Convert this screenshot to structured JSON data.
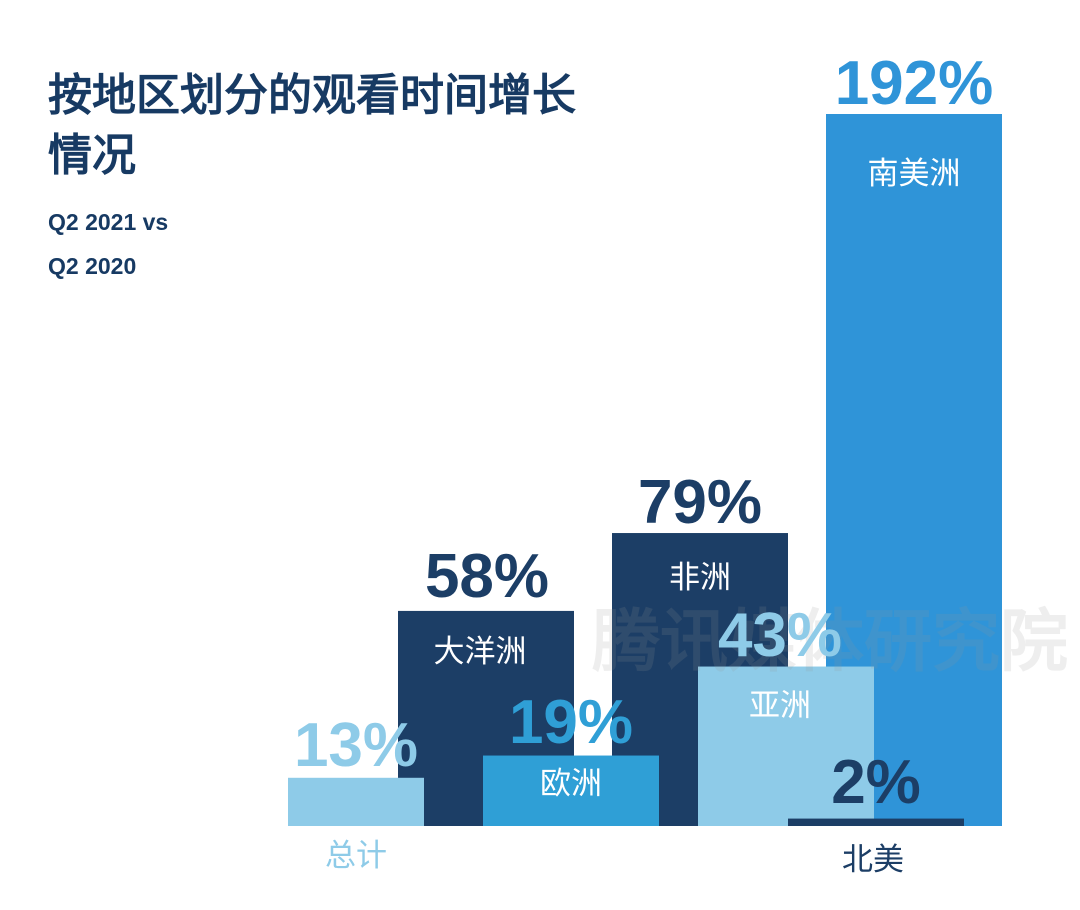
{
  "title": "按地区划分的观看时间增长情况",
  "subtitle": [
    "Q2 2021 vs",
    "Q2 2020"
  ],
  "watermark": "腾讯媒体研究院",
  "chart_data": {
    "type": "bar",
    "title": "按地区划分的观看时间增长情况",
    "subtitle": "Q2 2021 vs Q2 2020",
    "xlabel": "",
    "ylabel": "",
    "ylim": [
      0,
      200
    ],
    "grid": false,
    "unit": "%",
    "categories": [
      "总计",
      "大洋洲",
      "欧洲",
      "非洲",
      "亚洲",
      "北美",
      "南美洲"
    ],
    "values": [
      13,
      58,
      19,
      79,
      43,
      2,
      192
    ],
    "value_labels": [
      "13%",
      "58%",
      "19%",
      "79%",
      "43%",
      "2%",
      "192%"
    ],
    "colors": [
      "#8ecbe8",
      "#1c3e66",
      "#2f9fd6",
      "#1c3e66",
      "#8ecbe8",
      "#1c3e66",
      "#2f94d8"
    ]
  }
}
